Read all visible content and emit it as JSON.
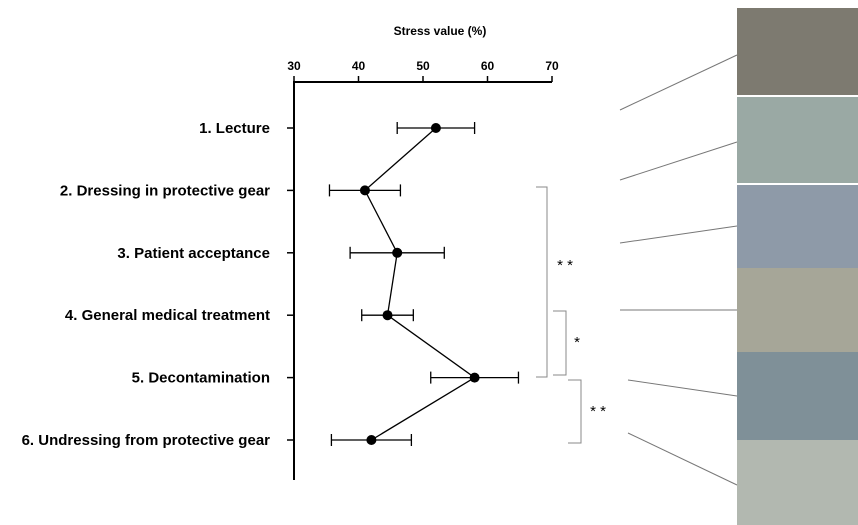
{
  "chart_data": {
    "type": "line",
    "title": "Stress value (%)",
    "categories": [
      "1. Lecture",
      "2. Dressing in protective gear",
      "3. Patient acceptance",
      "4. General medical treatment",
      "5. Decontamination",
      "6. Undressing from protective gear"
    ],
    "values": [
      52,
      41,
      46,
      44.5,
      58,
      42
    ],
    "errors": [
      6,
      5.5,
      7.3,
      4,
      6.8,
      6.2
    ],
    "color": "#000000",
    "xlim": [
      30,
      70
    ],
    "xticks": [
      30,
      40,
      50,
      60,
      70
    ],
    "annotations": [
      "* *",
      "*",
      "* *"
    ]
  }
}
